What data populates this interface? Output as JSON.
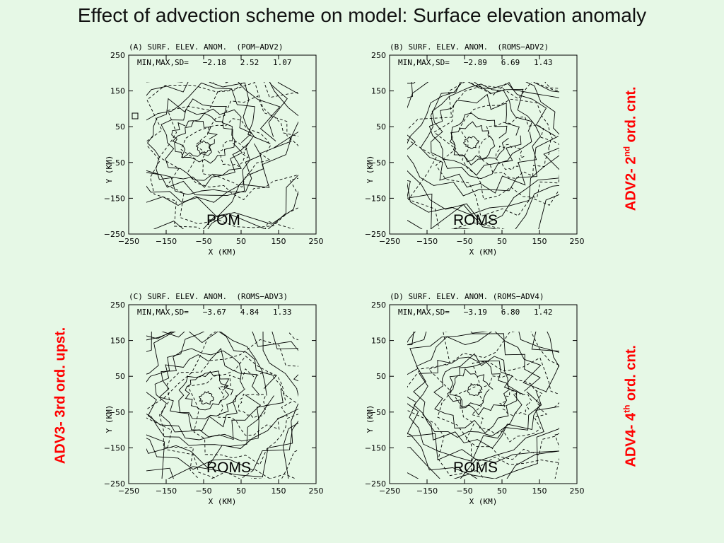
{
  "slide_title": "Effect of advection scheme on model: Surface elevation anomaly",
  "axes": {
    "x_label": "X (KM)",
    "y_label": "Y (KM)",
    "x_ticks": [
      "−250",
      "−150",
      "−50",
      "50",
      "150",
      "250"
    ],
    "y_ticks": [
      "250",
      "150",
      "50",
      "−50",
      "−150",
      "−250"
    ]
  },
  "panels": [
    {
      "id": "A",
      "title": "(A) SURF. ELEV. ANOM.  (POM−ADV2)",
      "stats": "MIN,MAX,SD=   −2.18   2.52   1.07",
      "model": "POM"
    },
    {
      "id": "B",
      "title": "(B) SURF. ELEV. ANOM.  (ROMS−ADV2)",
      "stats": "MIN,MAX,SD=   −2.89   6.69   1.43",
      "model": "ROMS"
    },
    {
      "id": "C",
      "title": "(C) SURF. ELEV. ANOM.  (ROMS−ADV3)",
      "stats": "MIN,MAX,SD=   −3.67   4.84   1.33",
      "model": "ROMS"
    },
    {
      "id": "D",
      "title": "(D) SURF. ELEV. ANOM. (ROMS−ADV4)",
      "stats": "MIN,MAX,SD=   −3.19   6.80   1.42",
      "model": "ROMS"
    }
  ],
  "side_labels": {
    "adv2": {
      "prefix": "ADV2- 2",
      "sup": "nd",
      "suffix": " ord. cnt."
    },
    "adv3": {
      "text": "ADV3- 3rd ord. upst."
    },
    "adv4": {
      "prefix": "ADV4- 4",
      "sup": "th",
      "suffix": " ord. cnt."
    }
  }
}
